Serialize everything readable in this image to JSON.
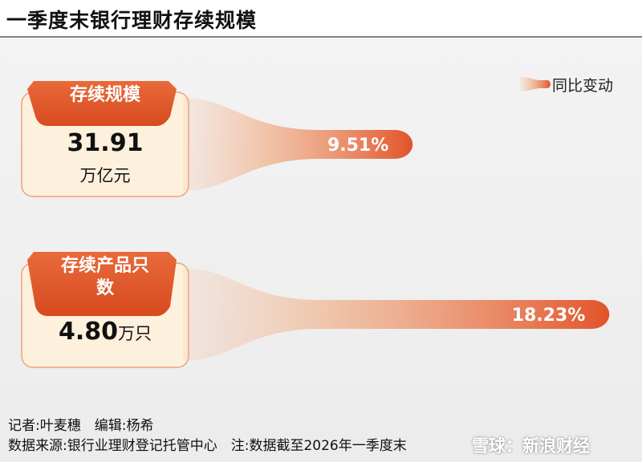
{
  "chart_data": {
    "type": "bar",
    "orientation": "horizontal",
    "title": "一季度末银行理财存续规模",
    "categories": [
      "存续规模",
      "存续产品只数"
    ],
    "card_values": [
      31.91,
      4.8
    ],
    "card_value_labels": [
      "31.91",
      "4.80"
    ],
    "card_units": [
      "万亿元",
      "万只"
    ],
    "series": [
      {
        "name": "同比变动",
        "color": "#e2532a",
        "values": [
          9.51,
          18.23
        ],
        "value_labels": [
          "9.51%",
          "18.23%"
        ]
      }
    ],
    "xlim": [
      0,
      19
    ],
    "legend": "top-right",
    "byline": "记者:叶麦穗　编辑:杨希",
    "source": "数据来源:银行业理财登记托管中心　注:数据截至2026年一季度末",
    "watermark": "雪球：新浪财经"
  }
}
